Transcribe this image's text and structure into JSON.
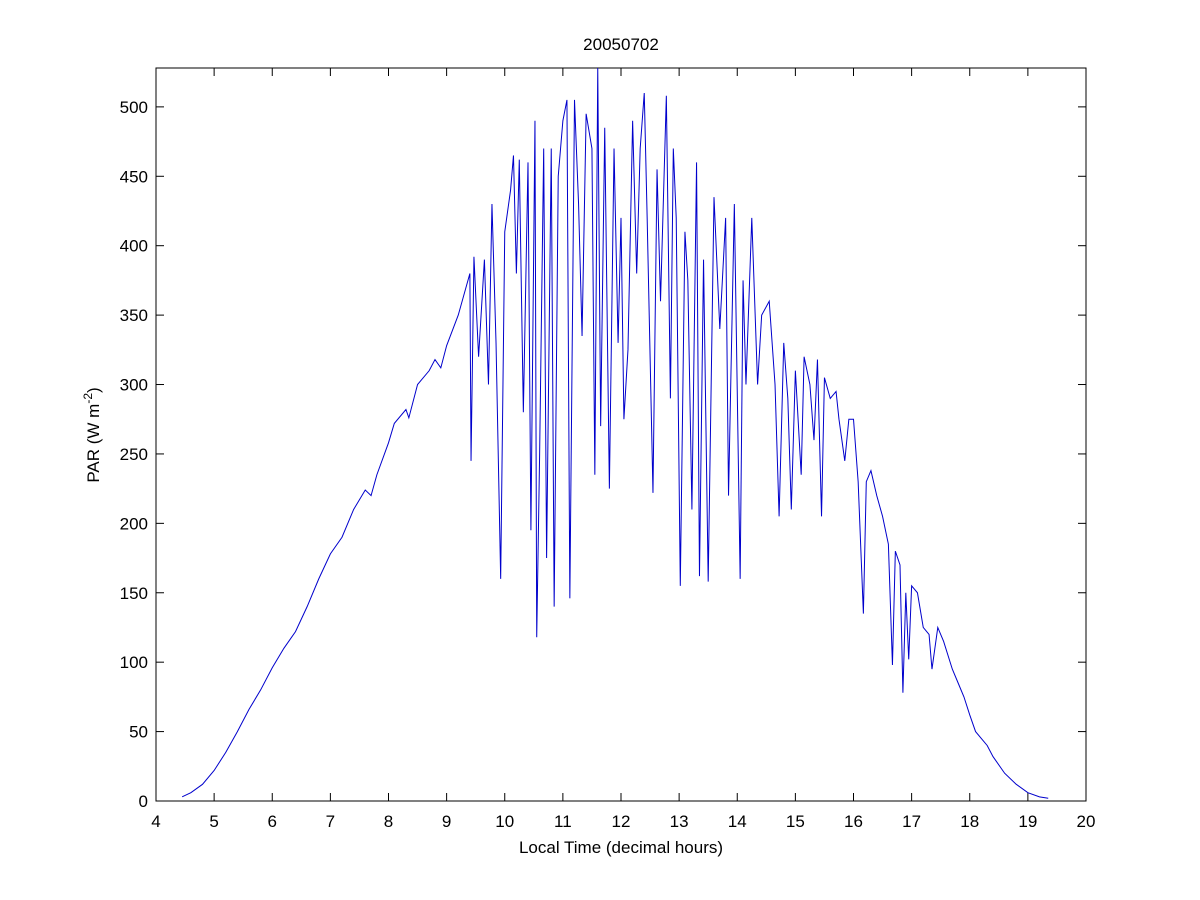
{
  "chart_data": {
    "type": "line",
    "title": "20050702",
    "xlabel": "Local Time (decimal hours)",
    "ylabel": [
      "PAR (W m",
      "-2",
      ")"
    ],
    "color": "#0000cc",
    "x": [
      4.45,
      4.6,
      4.8,
      5.0,
      5.2,
      5.4,
      5.6,
      5.8,
      6.0,
      6.2,
      6.4,
      6.6,
      6.8,
      7.0,
      7.2,
      7.4,
      7.6,
      7.7,
      7.8,
      8.0,
      8.1,
      8.3,
      8.35,
      8.5,
      8.7,
      8.8,
      8.9,
      9.0,
      9.2,
      9.4,
      9.42,
      9.47,
      9.55,
      9.65,
      9.72,
      9.78,
      9.85,
      9.93,
      10.0,
      10.1,
      10.15,
      10.2,
      10.25,
      10.32,
      10.4,
      10.45,
      10.52,
      10.55,
      10.6,
      10.67,
      10.72,
      10.8,
      10.85,
      10.92,
      11.0,
      11.07,
      11.12,
      11.2,
      11.27,
      11.33,
      11.4,
      11.5,
      11.55,
      11.6,
      11.65,
      11.72,
      11.8,
      11.88,
      11.95,
      12.0,
      12.05,
      12.12,
      12.2,
      12.27,
      12.33,
      12.4,
      12.45,
      12.55,
      12.62,
      12.68,
      12.78,
      12.85,
      12.9,
      12.95,
      13.02,
      13.1,
      13.15,
      13.22,
      13.3,
      13.35,
      13.42,
      13.5,
      13.6,
      13.7,
      13.8,
      13.85,
      13.95,
      14.05,
      14.1,
      14.15,
      14.25,
      14.35,
      14.42,
      14.55,
      14.65,
      14.72,
      14.8,
      14.87,
      14.93,
      15.0,
      15.1,
      15.15,
      15.25,
      15.32,
      15.38,
      15.45,
      15.5,
      15.6,
      15.7,
      15.75,
      15.85,
      15.92,
      16.0,
      16.08,
      16.17,
      16.22,
      16.3,
      16.4,
      16.5,
      16.6,
      16.67,
      16.72,
      16.8,
      16.85,
      16.9,
      16.95,
      17.0,
      17.1,
      17.2,
      17.3,
      17.35,
      17.45,
      17.55,
      17.7,
      17.8,
      17.9,
      18.0,
      18.1,
      18.2,
      18.3,
      18.4,
      18.6,
      18.8,
      19.0,
      19.2,
      19.35
    ],
    "values": [
      3,
      6,
      12,
      22,
      35,
      50,
      66,
      80,
      96,
      110,
      122,
      140,
      160,
      178,
      190,
      210,
      224,
      220,
      235,
      258,
      272,
      282,
      276,
      300,
      310,
      318,
      312,
      328,
      350,
      380,
      245,
      392,
      320,
      390,
      300,
      430,
      330,
      160,
      410,
      440,
      465,
      380,
      462,
      280,
      460,
      195,
      490,
      118,
      250,
      470,
      175,
      470,
      140,
      450,
      490,
      505,
      146,
      505,
      430,
      335,
      495,
      470,
      235,
      528,
      270,
      485,
      225,
      470,
      330,
      420,
      275,
      325,
      490,
      380,
      470,
      510,
      420,
      222,
      455,
      360,
      508,
      290,
      470,
      420,
      155,
      410,
      375,
      210,
      460,
      162,
      390,
      158,
      435,
      340,
      420,
      220,
      430,
      160,
      375,
      300,
      420,
      300,
      350,
      360,
      300,
      205,
      330,
      290,
      210,
      310,
      235,
      320,
      300,
      260,
      318,
      205,
      305,
      290,
      295,
      275,
      245,
      275,
      275,
      230,
      135,
      230,
      238,
      220,
      205,
      185,
      98,
      180,
      170,
      78,
      150,
      102,
      155,
      150,
      125,
      120,
      95,
      125,
      115,
      95,
      85,
      75,
      62,
      50,
      45,
      40,
      32,
      20,
      12,
      6,
      3,
      2
    ],
    "xlim": [
      4,
      20
    ],
    "xticks": [
      4,
      5,
      6,
      7,
      8,
      9,
      10,
      11,
      12,
      13,
      14,
      15,
      16,
      17,
      18,
      19,
      20
    ],
    "ylim": [
      0,
      528
    ],
    "yticks": [
      0,
      50,
      100,
      150,
      200,
      250,
      300,
      350,
      400,
      450,
      500
    ]
  }
}
